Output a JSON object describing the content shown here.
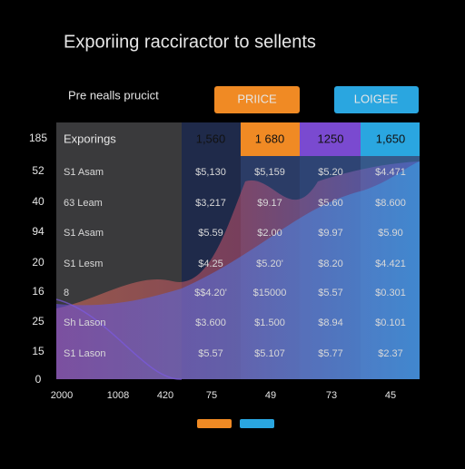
{
  "header": {
    "title": "Exporiing racciractor to sellents",
    "subtitle": "Pre nealls prucict"
  },
  "badges": [
    "PRIICE",
    "LOIGEE"
  ],
  "axis": {
    "left": [
      "185",
      "52",
      "40",
      "94",
      "20",
      "16",
      "25",
      "15",
      "0"
    ],
    "bottom": [
      "2000",
      "1008",
      "420",
      "75",
      "49",
      "73",
      "45"
    ]
  },
  "table": {
    "header": [
      "Exporings",
      "1,560",
      "1 680",
      "1250",
      "1,650"
    ],
    "rows": [
      [
        "S1 Asam",
        "$5,130",
        "$5,159",
        "$5.20",
        "$4.471"
      ],
      [
        "63 Leam",
        "$3,217",
        "$9.17",
        "$5.60",
        "$8.600"
      ],
      [
        "S1 Asam",
        "$5.59",
        "$2.00",
        "$9.97",
        "$5.90"
      ],
      [
        "S1 Lesm",
        "$4.25",
        "$5.20'",
        "$8.20",
        "$4.421"
      ],
      [
        "8",
        "$$4.20'",
        "$15000",
        "$5.57",
        "$0.301"
      ],
      [
        "Sh Lason",
        "$3.600",
        "$1.500",
        "$8.94",
        "$0.101"
      ],
      [
        "S1 Lason",
        "$5.57",
        "$5.107",
        "$5.77",
        "$2.37"
      ]
    ]
  }
}
